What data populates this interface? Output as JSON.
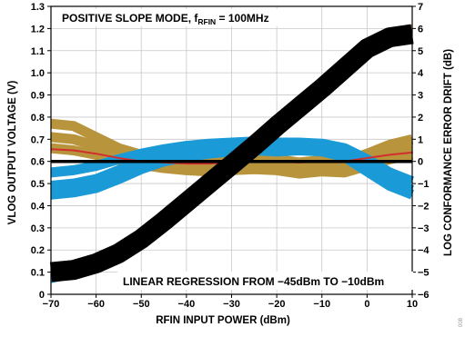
{
  "chart_data": {
    "type": "line",
    "title": "",
    "xlabel": "RFIN INPUT POWER (dBm)",
    "ylabel": "VLOG OUTPUT VOLTAGE (V)",
    "y2label": "LOG CONFORMANCE ERROR DRIFT (dB)",
    "xlim": [
      -70,
      10
    ],
    "ylim": [
      0,
      1.3
    ],
    "y2lim": [
      -6,
      7
    ],
    "grid": true,
    "x_ticks": [
      "−70",
      "−60",
      "−50",
      "−40",
      "−30",
      "−20",
      "−10",
      "0",
      "10"
    ],
    "y_ticks": [
      "0",
      "0.1",
      "0.2",
      "0.3",
      "0.4",
      "0.5",
      "0.6",
      "0.7",
      "0.8",
      "0.9",
      "1.0",
      "1.1",
      "1.2",
      "1.3"
    ],
    "y2_ticks": [
      "−6",
      "−5",
      "−4",
      "−3",
      "−2",
      "−1",
      "0",
      "1",
      "2",
      "3",
      "4",
      "5",
      "6",
      "7"
    ],
    "annotations": {
      "mode_prefix": "POSITIVE SLOPE MODE, f",
      "mode_subscript": "RFIN",
      "mode_suffix": " = 100MHz",
      "regression": "LINEAR REGRESSION FROM −45dBm TO −10dBm",
      "figure_id": "008"
    },
    "series": [
      {
        "axis": "left",
        "color": "#000000",
        "x": [
          -70,
          -65,
          -60,
          -55,
          -50,
          -45,
          -40,
          -35,
          -30,
          -25,
          -20,
          -15,
          -10,
          -5,
          0,
          5,
          10
        ],
        "y": [
          0.1,
          0.11,
          0.14,
          0.185,
          0.25,
          0.33,
          0.415,
          0.5,
          0.585,
          0.67,
          0.76,
          0.845,
          0.93,
          1.02,
          1.11,
          1.16,
          1.175
        ]
      },
      {
        "axis": "left",
        "color": "#1a9ad6",
        "x": [
          -70,
          -65,
          -60,
          -55,
          -50,
          -45,
          -40,
          -35,
          -30,
          -25,
          -20,
          -15,
          -10,
          -5,
          0,
          5,
          10
        ],
        "y": [
          0.065,
          0.085,
          0.115,
          0.16,
          0.225,
          0.305,
          0.39,
          0.48,
          0.565,
          0.655,
          0.745,
          0.83,
          0.92,
          1.005,
          1.1,
          1.16,
          1.18
        ]
      },
      {
        "axis": "left",
        "color": "#b8943c",
        "x": [
          -70,
          -65,
          -60,
          -55,
          -50,
          -45,
          -40,
          -35,
          -30,
          -25,
          -20,
          -15,
          -10,
          -5,
          0,
          5,
          10
        ],
        "y": [
          0.13,
          0.14,
          0.165,
          0.205,
          0.27,
          0.35,
          0.435,
          0.52,
          0.605,
          0.69,
          0.78,
          0.86,
          0.945,
          1.035,
          1.125,
          1.18,
          1.205
        ]
      },
      {
        "axis": "right",
        "color": "#b8943c",
        "x": [
          -70,
          -65,
          -60,
          -55,
          -50,
          -45,
          -40,
          -35,
          -30,
          -25,
          -20,
          -15,
          -10,
          -5,
          0,
          5,
          10
        ],
        "y": [
          1.1,
          1.0,
          0.7,
          0.3,
          0.05,
          -0.1,
          -0.2,
          -0.25,
          -0.2,
          -0.15,
          -0.15,
          -0.3,
          -0.2,
          -0.25,
          0.05,
          0.4,
          0.6
        ]
      },
      {
        "axis": "right",
        "color": "#b8943c",
        "x": [
          -70,
          -65,
          -60,
          -55,
          -50,
          -45,
          -40,
          -35,
          -30,
          -25,
          -20,
          -15,
          -10,
          -5,
          0,
          5,
          10
        ],
        "y": [
          1.7,
          1.6,
          1.1,
          0.6,
          0.3,
          0.1,
          0.05,
          0.0,
          0.05,
          0.1,
          0.1,
          -0.05,
          0.05,
          0.0,
          0.35,
          0.75,
          1.0
        ]
      },
      {
        "axis": "right",
        "color": "#b8943c",
        "x": [
          -70,
          -65,
          -60,
          -55,
          -50,
          -45,
          -40,
          -35,
          -30,
          -25,
          -20,
          -15,
          -10,
          -5,
          0,
          5,
          10
        ],
        "y": [
          0.6,
          0.5,
          0.3,
          0.05,
          -0.15,
          -0.3,
          -0.4,
          -0.45,
          -0.4,
          -0.35,
          -0.4,
          -0.55,
          -0.45,
          -0.5,
          -0.2,
          0.1,
          0.3
        ]
      },
      {
        "axis": "right",
        "color": "#d12f2f",
        "x": [
          -70,
          -65,
          -60,
          -55,
          -50,
          -45,
          -40,
          -35,
          -30,
          -25,
          -20,
          -15,
          -10,
          -5,
          0,
          5,
          10
        ],
        "y": [
          0.55,
          0.5,
          0.35,
          0.15,
          0.0,
          -0.05,
          -0.1,
          -0.1,
          -0.05,
          0.0,
          0.0,
          -0.05,
          0.0,
          0.0,
          0.15,
          0.3,
          0.4
        ]
      },
      {
        "axis": "right",
        "color": "#1a9ad6",
        "x": [
          -70,
          -65,
          -60,
          -55,
          -50,
          -45,
          -40,
          -35,
          -30,
          -25,
          -20,
          -15,
          -10,
          -5,
          0,
          5,
          10
        ],
        "y": [
          -1.1,
          -1.0,
          -0.8,
          -0.4,
          0.0,
          0.3,
          0.5,
          0.6,
          0.7,
          0.7,
          0.65,
          0.7,
          0.65,
          0.4,
          -0.2,
          -0.9,
          -1.3
        ]
      },
      {
        "axis": "right",
        "color": "#1a9ad6",
        "x": [
          -70,
          -65,
          -60,
          -55,
          -50,
          -45,
          -40,
          -35,
          -30,
          -25,
          -20,
          -15,
          -10,
          -5,
          0,
          5,
          10
        ],
        "y": [
          -0.5,
          -0.4,
          -0.2,
          0.1,
          0.35,
          0.55,
          0.7,
          0.8,
          0.85,
          0.9,
          0.85,
          0.85,
          0.8,
          0.6,
          0.1,
          -0.5,
          -0.9
        ]
      },
      {
        "axis": "right",
        "color": "#1a9ad6",
        "x": [
          -70,
          -65,
          -60,
          -55,
          -50,
          -45,
          -40,
          -35,
          -30,
          -25,
          -20,
          -15,
          -10,
          -5,
          0,
          5,
          10
        ],
        "y": [
          -1.5,
          -1.4,
          -1.2,
          -0.8,
          -0.35,
          0.0,
          0.2,
          0.35,
          0.45,
          0.5,
          0.45,
          0.5,
          0.45,
          0.2,
          -0.45,
          -1.1,
          -1.5
        ]
      },
      {
        "axis": "right",
        "color": "#000000",
        "x": [
          -70,
          10
        ],
        "y": [
          0,
          0
        ]
      }
    ]
  }
}
